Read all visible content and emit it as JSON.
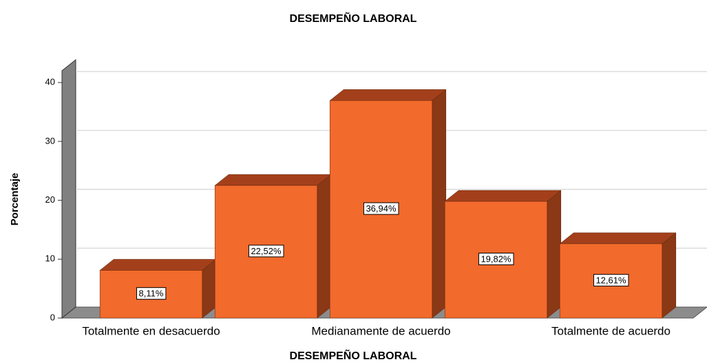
{
  "chart_data": {
    "type": "bar3d",
    "title": "DESEMPEÑO LABORAL",
    "x_label": "DESEMPEÑO LABORAL",
    "y_label": "Porcentaje",
    "categories": [
      "Totalmente en desacuerdo",
      null,
      "Medianamente de acuerdo",
      null,
      "Totalmente de acuerdo"
    ],
    "values": [
      8.11,
      22.52,
      36.94,
      19.82,
      12.61
    ],
    "value_labels": [
      "8,11%",
      "22,52%",
      "36,94%",
      "19,82%",
      "12,61%"
    ],
    "color": "#f26a2c",
    "ylim": [
      0,
      42
    ],
    "yticks": [
      0,
      10,
      20,
      30,
      40
    ],
    "grid": true
  }
}
